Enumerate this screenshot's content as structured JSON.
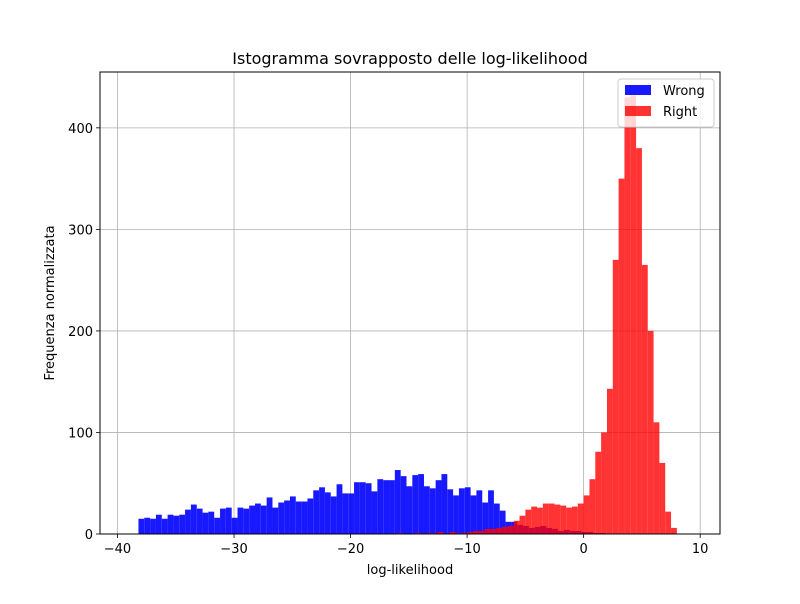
{
  "chart_data": {
    "type": "bar",
    "title": "Istogramma sovrapposto delle log-likelihood",
    "xlabel": "log-likelihood",
    "ylabel": "Frequenza normalizzata",
    "xlim": [
      -41.5,
      11.7
    ],
    "ylim": [
      0,
      455
    ],
    "xticks": [
      -40,
      -30,
      -20,
      -10,
      0,
      10
    ],
    "xtick_labels": [
      "−40",
      "−30",
      "−20",
      "−10",
      "0",
      "10"
    ],
    "yticks": [
      0,
      100,
      200,
      300,
      400
    ],
    "ytick_labels": [
      "0",
      "100",
      "200",
      "300",
      "400"
    ],
    "grid": true,
    "legend_position": "top-right",
    "series": [
      {
        "name": "Wrong",
        "color": "#0000ff",
        "alpha": 0.9,
        "x_start": -38.2,
        "bin_width": 0.5,
        "values": [
          15,
          16,
          15,
          19,
          15,
          19,
          18,
          19,
          24,
          29,
          25,
          21,
          22,
          16,
          25,
          26,
          16,
          26,
          25,
          28,
          30,
          28,
          36,
          26,
          31,
          33,
          37,
          32,
          32,
          35,
          43,
          46,
          41,
          37,
          49,
          40,
          40,
          51,
          51,
          50,
          42,
          54,
          53,
          53,
          63,
          57,
          47,
          58,
          59,
          47,
          45,
          53,
          59,
          44,
          38,
          45,
          46,
          38,
          43,
          31,
          43,
          30,
          23,
          12,
          12,
          9,
          8,
          6,
          7,
          8,
          6,
          5,
          3,
          4,
          3,
          3,
          2,
          2,
          1,
          1
        ]
      },
      {
        "name": "Right",
        "color": "#ff0000",
        "alpha": 0.8,
        "x_start": -16.0,
        "bin_width": 0.5,
        "values": [
          1,
          0,
          0,
          1,
          0,
          1,
          1,
          2,
          0,
          2,
          1,
          1,
          2,
          3,
          3,
          5,
          5,
          6,
          7,
          8,
          13,
          18,
          24,
          27,
          26,
          30,
          30,
          29,
          28,
          26,
          27,
          30,
          38,
          54,
          81,
          100,
          143,
          270,
          350,
          430,
          432,
          380,
          265,
          200,
          110,
          70,
          22,
          6
        ]
      }
    ]
  }
}
